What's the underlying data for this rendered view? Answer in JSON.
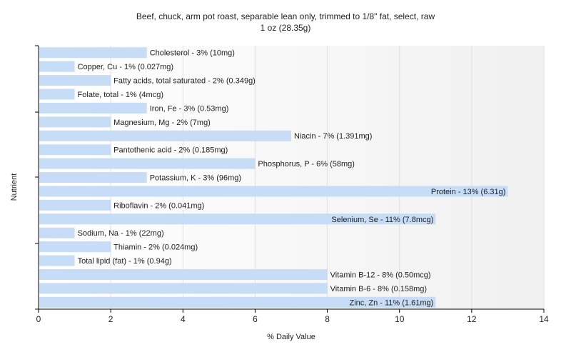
{
  "chart_data": {
    "type": "bar",
    "orientation": "horizontal",
    "title": "Beef, chuck, arm pot roast, separable lean only, trimmed to 1/8\" fat, select, raw",
    "subtitle": "1 oz (28.35g)",
    "xlabel": "% Daily Value",
    "ylabel": "Nutrient",
    "xlim": [
      0,
      14
    ],
    "xticks": [
      "0",
      "2",
      "4",
      "6",
      "8",
      "10",
      "12",
      "14"
    ],
    "grid": true,
    "bar_color": "#c6dcf7",
    "categories": [
      "Cholesterol",
      "Copper, Cu",
      "Fatty acids, total saturated",
      "Folate, total",
      "Iron, Fe",
      "Magnesium, Mg",
      "Niacin",
      "Pantothenic acid",
      "Phosphorus, P",
      "Potassium, K",
      "Protein",
      "Riboflavin",
      "Selenium, Se",
      "Sodium, Na",
      "Thiamin",
      "Total lipid (fat)",
      "Vitamin B-12",
      "Vitamin B-6",
      "Zinc, Zn"
    ],
    "values": [
      3,
      1,
      2,
      1,
      3,
      2,
      7,
      2,
      6,
      3,
      13,
      2,
      11,
      1,
      2,
      1,
      8,
      8,
      11
    ],
    "labels": [
      "Cholesterol - 3% (10mg)",
      "Copper, Cu - 1% (0.027mg)",
      "Fatty acids, total saturated - 2% (0.349g)",
      "Folate, total - 1% (4mcg)",
      "Iron, Fe - 3% (0.53mg)",
      "Magnesium, Mg - 2% (7mg)",
      "Niacin - 7% (1.391mg)",
      "Pantothenic acid - 2% (0.185mg)",
      "Phosphorus, P - 6% (58mg)",
      "Potassium, K - 3% (96mg)",
      "Protein - 13% (6.31g)",
      "Riboflavin - 2% (0.041mg)",
      "Selenium, Se - 11% (7.8mcg)",
      "Sodium, Na - 1% (22mg)",
      "Thiamin - 2% (0.024mg)",
      "Total lipid (fat) - 1% (0.94g)",
      "Vitamin B-12 - 8% (0.50mcg)",
      "Vitamin B-6 - 8% (0.158mg)",
      "Zinc, Zn - 11% (1.61mg)"
    ]
  }
}
